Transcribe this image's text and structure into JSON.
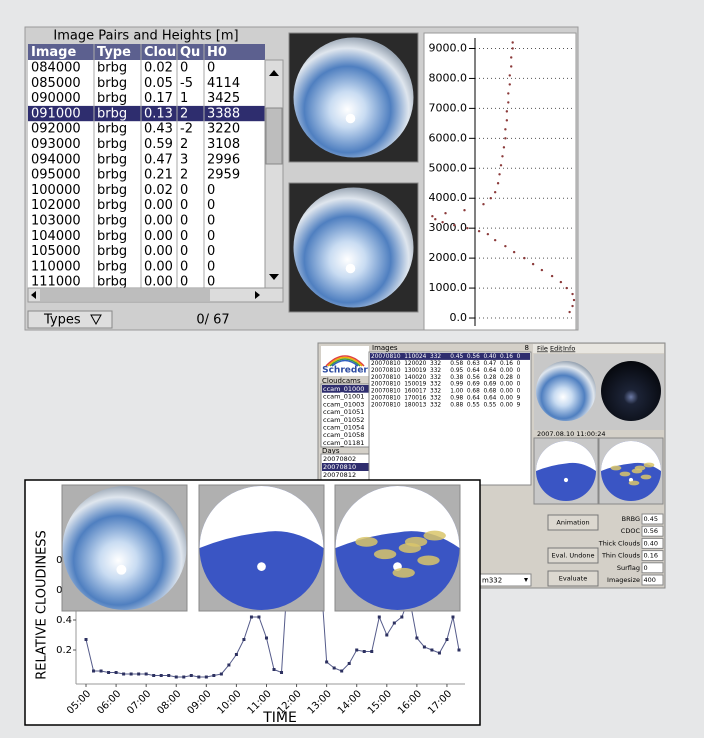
{
  "top_panel": {
    "table": {
      "title": "Image Pairs and Heights [m]",
      "columns": [
        "Image",
        "Type",
        "Clou",
        "Qu",
        "H0"
      ],
      "selected": 3,
      "rows": [
        [
          "084000",
          "brbg",
          "0.02",
          "0",
          "0"
        ],
        [
          "085000",
          "brbg",
          "0.05",
          "-5",
          "4114"
        ],
        [
          "090000",
          "brbg",
          "0.17",
          "1",
          "3425"
        ],
        [
          "091000",
          "brbg",
          "0.13",
          "2",
          "3388"
        ],
        [
          "092000",
          "brbg",
          "0.43",
          "-2",
          "3220"
        ],
        [
          "093000",
          "brbg",
          "0.59",
          "2",
          "3108"
        ],
        [
          "094000",
          "brbg",
          "0.47",
          "3",
          "2996"
        ],
        [
          "095000",
          "brbg",
          "0.21",
          "2",
          "2959"
        ],
        [
          "100000",
          "brbg",
          "0.02",
          "0",
          "0"
        ],
        [
          "102000",
          "brbg",
          "0.00",
          "0",
          "0"
        ],
        [
          "103000",
          "brbg",
          "0.00",
          "0",
          "0"
        ],
        [
          "104000",
          "brbg",
          "0.00",
          "0",
          "0"
        ],
        [
          "105000",
          "brbg",
          "0.00",
          "0",
          "0"
        ],
        [
          "110000",
          "brbg",
          "0.00",
          "0",
          "0"
        ],
        [
          "111000",
          "brbg",
          "0.00",
          "0",
          "0"
        ]
      ]
    },
    "types_button": "Types",
    "counter": "0/ 67"
  },
  "chart_data": [
    {
      "type": "scatter",
      "color": "#8b3a3a",
      "x": [
        0.58,
        0.58,
        0.57,
        0.57,
        0.56,
        0.56,
        0.55,
        0.55,
        0.54,
        0.54,
        0.53,
        0.53,
        0.52,
        0.51,
        0.5,
        0.49,
        0.48,
        0.46,
        0.43,
        0.38,
        0.25,
        0.12,
        0.03,
        0.05,
        0.1,
        0.18,
        0.27,
        0.35,
        0.41,
        0.46,
        0.53,
        0.59,
        0.66,
        0.72,
        0.78,
        0.85,
        0.91,
        0.95,
        0.99,
        1.0,
        0.99,
        0.97
      ],
      "values": [
        9200,
        9000,
        8700,
        8400,
        8100,
        7800,
        7500,
        7200,
        6900,
        6600,
        6300,
        6000,
        5700,
        5400,
        5100,
        4800,
        4500,
        4200,
        4000,
        3800,
        3600,
        3500,
        3400,
        3300,
        3200,
        3100,
        3000,
        2900,
        2800,
        2600,
        2400,
        2200,
        2000,
        1800,
        1600,
        1400,
        1200,
        1000,
        800,
        600,
        400,
        200
      ],
      "xlim": [
        0,
        1
      ],
      "ylim": [
        -400,
        9350
      ],
      "yticks": [
        {
          "value": 0,
          "label": "0.0"
        },
        {
          "value": 1000,
          "label": "1000.0"
        },
        {
          "value": 2000,
          "label": "2000.0"
        },
        {
          "value": 3000,
          "label": "3000.0"
        },
        {
          "value": 4000,
          "label": "4000.0"
        },
        {
          "value": 5000,
          "label": "5000.0"
        },
        {
          "value": 6000,
          "label": "6000.0"
        },
        {
          "value": 7000,
          "label": "7000.0"
        },
        {
          "value": 8000,
          "label": "8000.0"
        },
        {
          "value": 9000,
          "label": "9000.0"
        }
      ],
      "grid": true
    },
    {
      "type": "line",
      "color": "#555b8a",
      "y_label": "RELATIVE CLOUDINESS",
      "x_label": "TIME",
      "x": [
        5.0,
        5.25,
        5.5,
        5.75,
        6.0,
        6.25,
        6.5,
        6.75,
        7.0,
        7.25,
        7.5,
        7.75,
        8.0,
        8.25,
        8.5,
        8.75,
        9.0,
        9.25,
        9.5,
        9.75,
        10.0,
        10.25,
        10.5,
        10.75,
        11.0,
        11.25,
        11.5,
        11.75,
        12.75,
        13.0,
        13.25,
        13.5,
        13.75,
        14.0,
        14.25,
        14.5,
        14.75,
        15.0,
        15.25,
        15.5,
        15.75,
        16.0,
        16.25,
        16.5,
        16.75,
        17.0,
        17.2,
        17.4
      ],
      "values": [
        0.27,
        0.06,
        0.06,
        0.05,
        0.05,
        0.04,
        0.04,
        0.04,
        0.04,
        0.03,
        0.03,
        0.03,
        0.02,
        0.02,
        0.03,
        0.02,
        0.02,
        0.03,
        0.04,
        0.1,
        0.17,
        0.27,
        0.42,
        0.42,
        0.28,
        0.07,
        0.05,
        0.85,
        0.85,
        0.12,
        0.08,
        0.06,
        0.11,
        0.2,
        0.19,
        0.19,
        0.42,
        0.3,
        0.38,
        0.42,
        0.55,
        0.28,
        0.22,
        0.2,
        0.18,
        0.27,
        0.42,
        0.2
      ],
      "xlim": [
        4.8,
        17.6
      ],
      "ylim": [
        0,
        0.9
      ],
      "xticks": [
        {
          "value": 5,
          "label": "05:00"
        },
        {
          "value": 6,
          "label": "06:00"
        },
        {
          "value": 7,
          "label": "07:00"
        },
        {
          "value": 8,
          "label": "08:00"
        },
        {
          "value": 9,
          "label": "09:00"
        },
        {
          "value": 10,
          "label": "10:00"
        },
        {
          "value": 11,
          "label": "11:00"
        },
        {
          "value": 12,
          "label": "12:00"
        },
        {
          "value": 13,
          "label": "13:00"
        },
        {
          "value": 14,
          "label": "14:00"
        },
        {
          "value": 15,
          "label": "15:00"
        },
        {
          "value": 16,
          "label": "16:00"
        },
        {
          "value": 17,
          "label": "17:00"
        }
      ],
      "yticks": [
        0.2,
        0.4,
        0.6,
        0.8
      ]
    }
  ],
  "app_window": {
    "logo": "Schreder",
    "menu": [
      "File",
      "Edit",
      "Info"
    ],
    "cloudcams_label": "Cloudcams",
    "cloudcams": [
      "ccam_01000",
      "ccam_01001",
      "ccam_01003",
      "ccam_01051",
      "ccam_01052",
      "ccam_01054",
      "ccam_01058",
      "ccam_01181"
    ],
    "selected_cloudcam": 0,
    "days_label": "Days",
    "days": [
      "20070802",
      "20070810",
      "20070812"
    ],
    "selected_day": 1,
    "images_label": "Images",
    "images_count": 8,
    "images": [
      "20070810  110024  332     0.45  0.56  0.40  0.16  0",
      "20070810  120020  332     0.58  0.63  0.47  0.16  0",
      "20070810  130019  332     0.95  0.64  0.64  0.00  0",
      "20070810  140020  332     0.38  0.56  0.28  0.28  0",
      "20070810  150019  332     0.99  0.69  0.69  0.00  0",
      "20070810  160017  332     1.00  0.68  0.68  0.00  0",
      "20070810  170016  332     0.98  0.64  0.64  0.00  9",
      "20070810  180013  332     0.88  0.55  0.55  0.00  9"
    ],
    "selected_image": 0,
    "timestamp": "2007.08.10 11:00:24",
    "buttons": [
      "Animation",
      "Eval. Undone",
      "Evaluate"
    ],
    "fields": [
      {
        "label": "BRBG",
        "value": "0.45"
      },
      {
        "label": "CDOC",
        "value": "0.56"
      },
      {
        "label": "Thick Clouds",
        "value": "0.40"
      },
      {
        "label": "Thin Clouds",
        "value": "0.16"
      },
      {
        "label": "Surflag",
        "value": "0"
      },
      {
        "label": "Imagesize",
        "value": "400"
      }
    ],
    "dropdown": "m332"
  }
}
